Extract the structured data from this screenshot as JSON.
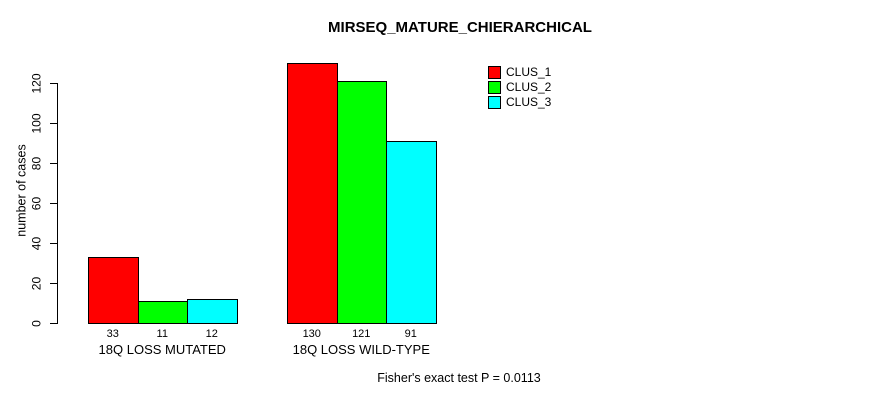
{
  "window": {
    "background_color": "#ffffff",
    "text_color": "#000000"
  },
  "chart_data": {
    "type": "bar",
    "title": "MIRSEQ_MATURE_CHIERARCHICAL",
    "xlabel": "",
    "ylabel": "number of cases",
    "categories": [
      "18Q LOSS MUTATED",
      "18Q LOSS WILD-TYPE"
    ],
    "series": [
      {
        "name": "CLUS_1",
        "color": "#ff0000",
        "values": [
          33,
          130
        ]
      },
      {
        "name": "CLUS_2",
        "color": "#00ff00",
        "values": [
          11,
          121
        ]
      },
      {
        "name": "CLUS_3",
        "color": "#00ffff",
        "values": [
          12,
          91
        ]
      }
    ],
    "show_value_labels": true,
    "yticks": [
      0,
      20,
      40,
      60,
      80,
      100,
      120
    ],
    "ylim": [
      0,
      130
    ],
    "grid": false,
    "legend_position": "top-right",
    "bar_border_color": "#000000",
    "annotation": "Fisher's exact test P = 0.0113"
  }
}
